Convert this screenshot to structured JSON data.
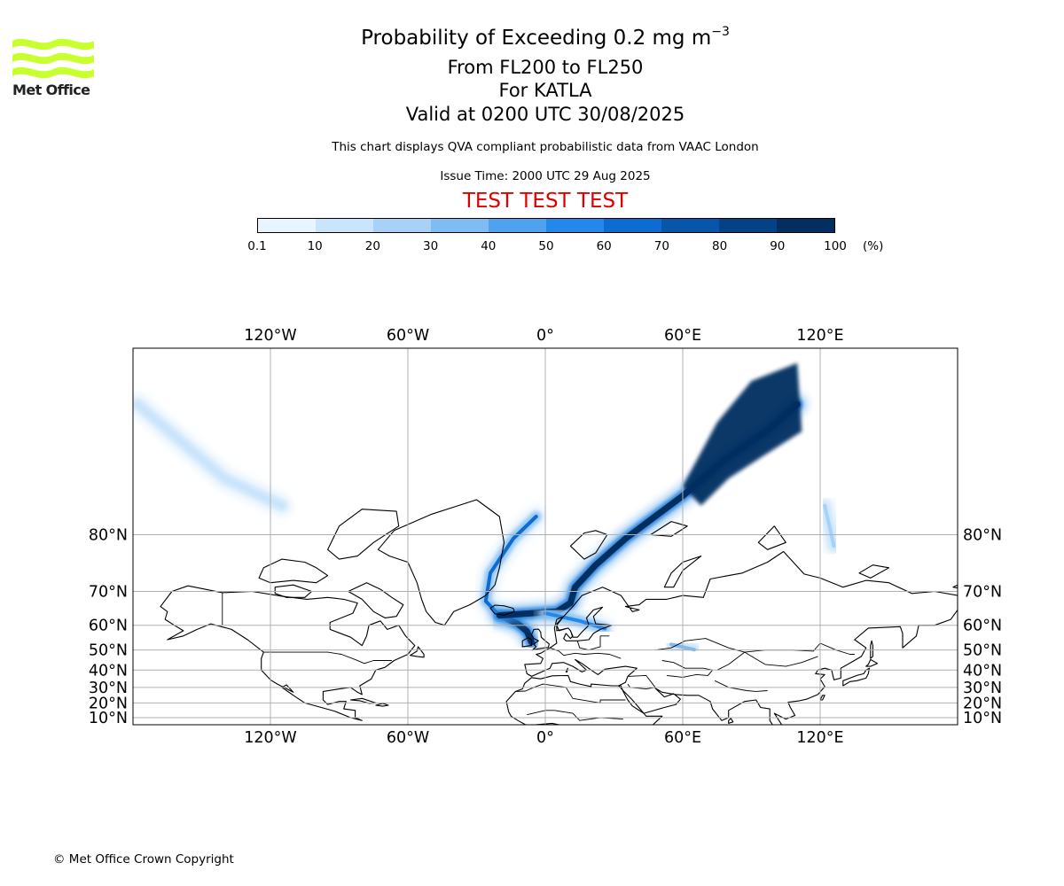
{
  "header": {
    "title_main": "Probability of Exceeding 0.2 mg m",
    "title_unit_exp": "−3",
    "level_range": "From FL200 to FL250",
    "volcano": "For KATLA",
    "valid_time": "Valid at 0200 UTC 30/08/2025",
    "description": "This chart displays QVA compliant probabilistic data from VAAC London",
    "issue_time": "Issue Time: 2000 UTC 29 Aug 2025",
    "test_banner": "TEST TEST TEST"
  },
  "logo": {
    "text": "Met Office",
    "color": "#c8ff2e"
  },
  "colorbar": {
    "ticks": [
      "0.1",
      "10",
      "20",
      "30",
      "40",
      "50",
      "60",
      "70",
      "80",
      "90",
      "100"
    ],
    "unit": "(%)",
    "colors": [
      "#e8f4ff",
      "#c9e4fb",
      "#a7d1f7",
      "#7fbcf2",
      "#4fa3ee",
      "#2288ea",
      "#0c6cd0",
      "#0756a9",
      "#044286",
      "#022f61"
    ]
  },
  "map": {
    "lon_labels": [
      "120°W",
      "60°W",
      "0°",
      "60°E",
      "120°E"
    ],
    "lon_values": [
      -120,
      -60,
      0,
      60,
      120
    ],
    "lat_labels": [
      "80°N",
      "70°N",
      "60°N",
      "50°N",
      "40°N",
      "30°N",
      "20°N",
      "10°N"
    ],
    "lat_values": [
      80,
      70,
      60,
      50,
      40,
      30,
      20,
      10
    ],
    "gridlines": true,
    "lon_range": [
      -180,
      180
    ],
    "lat_range": [
      5,
      89
    ],
    "ash_probability_plumes": [
      {
        "name": "iceland-core",
        "points": [
          [
            -20,
            63.3
          ],
          [
            -12,
            60.5
          ],
          [
            -8,
            57.8
          ],
          [
            -6,
            53.5
          ]
        ],
        "probability": 90
      },
      {
        "name": "greenland-arm",
        "points": [
          [
            -20,
            63.3
          ],
          [
            -26,
            67.5
          ],
          [
            -24,
            74
          ],
          [
            -14,
            79.5
          ],
          [
            -4,
            82
          ]
        ],
        "probability": 60
      },
      {
        "name": "norway-arm",
        "points": [
          [
            -20,
            63.3
          ],
          [
            5,
            64.5
          ],
          [
            11,
            67
          ],
          [
            13,
            71
          ],
          [
            22,
            75.5
          ],
          [
            35,
            79.5
          ],
          [
            45,
            81.5
          ],
          [
            60,
            83.8
          ],
          [
            78,
            86
          ],
          [
            98,
            87.3
          ],
          [
            110,
            88
          ]
        ],
        "probability": 90
      },
      {
        "name": "baltic-arm",
        "points": [
          [
            0,
            64
          ],
          [
            15,
            61.5
          ],
          [
            26,
            58.8
          ]
        ],
        "probability": 55
      },
      {
        "name": "russia-patch",
        "points": [
          [
            55,
            52.5
          ],
          [
            65,
            50.2
          ]
        ],
        "probability": 30
      },
      {
        "name": "siberia-patch",
        "points": [
          [
            122,
            83
          ],
          [
            126,
            78.5
          ]
        ],
        "probability": 20
      },
      {
        "name": "arctic-canada-haze",
        "points": [
          [
            -178,
            88
          ],
          [
            -140,
            85
          ],
          [
            -115,
            83
          ]
        ],
        "probability": 10
      }
    ]
  },
  "footer": {
    "copyright": "© Met Office Crown Copyright"
  }
}
